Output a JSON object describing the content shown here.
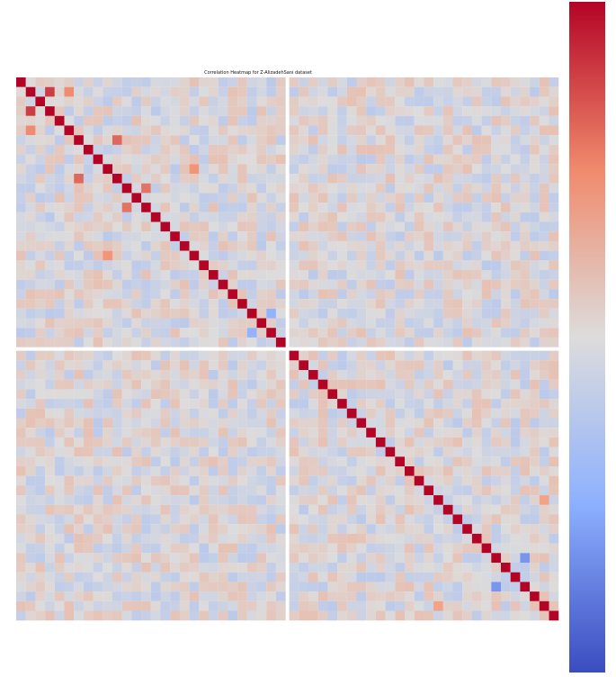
{
  "chart_data": {
    "type": "heatmap",
    "title": "Correlation Heatmap for Z-AlizadehSani dataset",
    "xlabel": "",
    "ylabel": "",
    "n_features": 56,
    "value_range": [
      -1,
      1
    ],
    "colormap": "coolwarm",
    "diagonal_value": 1.0,
    "cell_annotations": "visible",
    "feature_labels": "present",
    "colorbar": "right",
    "blocks": [
      {
        "name": "",
        "rows": [
          0,
          28
        ],
        "cols": [
          0,
          28
        ]
      },
      {
        "name": "",
        "rows": [
          0,
          28
        ],
        "cols": [
          28,
          56
        ]
      },
      {
        "name": "",
        "rows": [
          28,
          56
        ],
        "cols": [
          0,
          28
        ]
      },
      {
        "name": "",
        "rows": [
          28,
          56
        ],
        "cols": [
          28,
          56
        ]
      }
    ],
    "highlighted_pairs": [
      {
        "row": 1,
        "col": 3,
        "value": 0.81
      },
      {
        "row": 1,
        "col": 5,
        "value": 0.55
      },
      {
        "row": 10,
        "col": 6,
        "value": 0.67
      },
      {
        "row": 13,
        "col": 11,
        "value": 0.63
      },
      {
        "row": 18,
        "col": 9,
        "value": 0.52
      },
      {
        "row": 26,
        "col": 24,
        "value": -0.46
      },
      {
        "row": 52,
        "col": 49,
        "value": -0.63
      },
      {
        "row": 54,
        "col": 43,
        "value": 0.44
      }
    ]
  }
}
